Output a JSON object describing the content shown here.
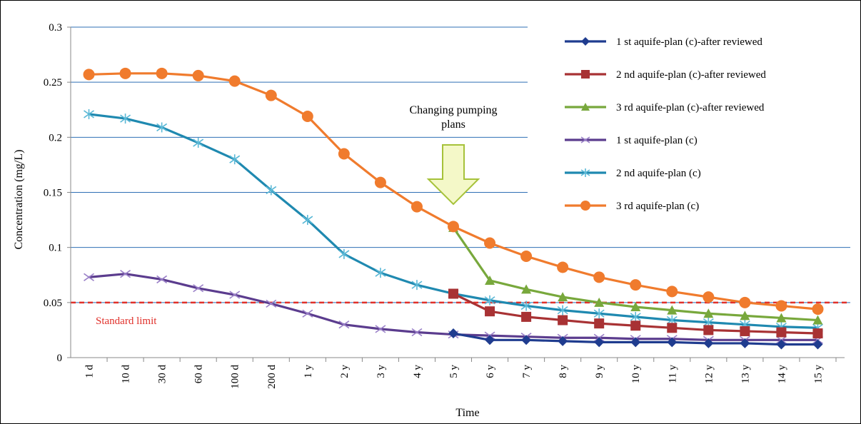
{
  "chart_data": {
    "type": "line",
    "xlabel": "Time",
    "ylabel": "Concentration (mg/L)",
    "categories": [
      "1 d",
      "10 d",
      "30 d",
      "60 d",
      "100 d",
      "200 d",
      "1 y",
      "2 y",
      "3 y",
      "4 y",
      "5 y",
      "6 y",
      "7 y",
      "8 y",
      "9 y",
      "10 y",
      "11 y",
      "12 y",
      "13 y",
      "14 y",
      "15 y"
    ],
    "ylim": [
      0,
      0.3
    ],
    "yticks": [
      "0",
      "0.05",
      "0.1",
      "0.15",
      "0.2",
      "0.25",
      "0.3"
    ],
    "grid": true,
    "legend_position": "right",
    "series": [
      {
        "name": "1 st aquife-plan (c)-after reviewed",
        "color": "#1f3c8f",
        "marker": "diamond",
        "values": [
          null,
          null,
          null,
          null,
          null,
          null,
          null,
          null,
          null,
          null,
          0.022,
          0.016,
          0.016,
          0.015,
          0.014,
          0.014,
          0.014,
          0.013,
          0.013,
          0.012,
          0.012
        ]
      },
      {
        "name": "2 nd aquife-plan (c)-after reviewed",
        "color": "#a83234",
        "marker": "square",
        "values": [
          null,
          null,
          null,
          null,
          null,
          null,
          null,
          null,
          null,
          null,
          0.058,
          0.042,
          0.037,
          0.034,
          0.031,
          0.029,
          0.027,
          0.025,
          0.024,
          0.023,
          0.022
        ]
      },
      {
        "name": "3 rd aquife-plan (c)-after reviewed",
        "color": "#78a83c",
        "marker": "triangle",
        "values": [
          null,
          null,
          null,
          null,
          null,
          null,
          null,
          null,
          null,
          null,
          0.118,
          0.07,
          0.062,
          0.055,
          0.05,
          0.046,
          0.043,
          0.04,
          0.038,
          0.036,
          0.034
        ]
      },
      {
        "name": "1 st aquife-plan (c)",
        "color": "#5b3c8e",
        "marker": "x",
        "values": [
          0.073,
          0.076,
          0.071,
          0.063,
          0.057,
          0.049,
          0.04,
          0.03,
          0.026,
          0.023,
          0.021,
          0.02,
          0.019,
          0.018,
          0.018,
          0.017,
          0.017,
          0.016,
          0.016,
          0.016,
          0.016
        ]
      },
      {
        "name": "2 nd aquife-plan (c)",
        "color": "#1f89b0",
        "marker": "star",
        "values": [
          0.221,
          0.217,
          0.209,
          0.195,
          0.18,
          0.152,
          0.125,
          0.094,
          0.077,
          0.066,
          0.058,
          0.052,
          0.047,
          0.043,
          0.04,
          0.037,
          0.034,
          0.032,
          0.03,
          0.028,
          0.027
        ]
      },
      {
        "name": "3 rd aquife-plan (c)",
        "color": "#f07b2d",
        "marker": "circle",
        "values": [
          0.257,
          0.258,
          0.258,
          0.256,
          0.251,
          0.238,
          0.219,
          0.185,
          0.159,
          0.137,
          0.119,
          0.104,
          0.092,
          0.082,
          0.073,
          0.066,
          0.06,
          0.055,
          0.05,
          0.047,
          0.044
        ]
      }
    ],
    "standard_limit": {
      "value": 0.05,
      "label": "Standard limit",
      "color": "#e0302a"
    },
    "annotation": {
      "text_line1": "Changing pumping",
      "text_line2": "plans",
      "at_category": "5 y"
    }
  }
}
